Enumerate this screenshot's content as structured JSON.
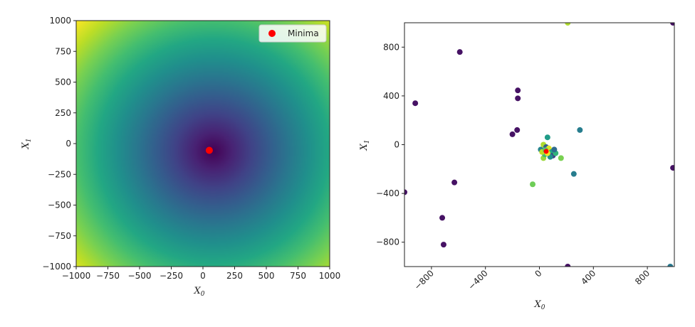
{
  "chart_data": [
    {
      "type": "heatmap",
      "title": "",
      "xlabel": "X",
      "xlabel_sub": "0",
      "ylabel": "X",
      "ylabel_sub": "1",
      "xlim": [
        -1000,
        1000
      ],
      "ylim": [
        -1000,
        1000
      ],
      "xticks": [
        -1000,
        -750,
        -500,
        -250,
        0,
        250,
        500,
        750,
        1000
      ],
      "yticks": [
        -1000,
        -750,
        -500,
        -250,
        0,
        250,
        500,
        750,
        1000
      ],
      "colormap": "viridis",
      "function_minimum_center": [
        80,
        -60
      ],
      "minima_point": {
        "x": 50,
        "y": -55,
        "color": "#ff0000"
      },
      "legend": {
        "placement": "top-right",
        "label": "Minima"
      }
    },
    {
      "type": "scatter",
      "title": "",
      "xlabel": "X",
      "xlabel_sub": "0",
      "ylabel": "X",
      "ylabel_sub": "1",
      "xlim": [
        -1000,
        1000
      ],
      "ylim": [
        -1000,
        1000
      ],
      "xticks": [
        -800,
        -400,
        0,
        400,
        800
      ],
      "yticks": [
        -800,
        -400,
        0,
        400,
        800
      ],
      "xtick_rotation": -45,
      "colormap": "viridis",
      "points": [
        {
          "x": -590,
          "y": 760,
          "c": 0.05
        },
        {
          "x": -920,
          "y": 340,
          "c": 0.05
        },
        {
          "x": -160,
          "y": 445,
          "c": 0.05
        },
        {
          "x": -160,
          "y": 380,
          "c": 0.05
        },
        {
          "x": -200,
          "y": 85,
          "c": 0.05
        },
        {
          "x": -165,
          "y": 120,
          "c": 0.05
        },
        {
          "x": -1000,
          "y": -390,
          "c": 0.05
        },
        {
          "x": -630,
          "y": -310,
          "c": 0.05
        },
        {
          "x": -720,
          "y": -600,
          "c": 0.05
        },
        {
          "x": -710,
          "y": -820,
          "c": 0.05
        },
        {
          "x": 210,
          "y": -1000,
          "c": 0.05
        },
        {
          "x": 970,
          "y": -1000,
          "c": 0.4
        },
        {
          "x": 990,
          "y": -190,
          "c": 0.05
        },
        {
          "x": 990,
          "y": 1000,
          "c": 0.05
        },
        {
          "x": 210,
          "y": 1000,
          "c": 0.88
        },
        {
          "x": 300,
          "y": 120,
          "c": 0.42
        },
        {
          "x": 255,
          "y": -240,
          "c": 0.42
        },
        {
          "x": -50,
          "y": -325,
          "c": 0.78
        },
        {
          "x": 60,
          "y": 60,
          "c": 0.55
        },
        {
          "x": 160,
          "y": -110,
          "c": 0.8
        },
        {
          "x": 10,
          "y": -40,
          "c": 0.45
        },
        {
          "x": 30,
          "y": 0,
          "c": 0.88
        },
        {
          "x": 50,
          "y": -20,
          "c": 0.3
        },
        {
          "x": 70,
          "y": -30,
          "c": 0.95
        },
        {
          "x": 90,
          "y": -60,
          "c": 0.6
        },
        {
          "x": 100,
          "y": -90,
          "c": 0.2
        },
        {
          "x": 30,
          "y": -110,
          "c": 0.85
        },
        {
          "x": 40,
          "y": -80,
          "c": 0.7
        },
        {
          "x": 80,
          "y": -100,
          "c": 0.5
        },
        {
          "x": 120,
          "y": -70,
          "c": 0.65
        },
        {
          "x": 20,
          "y": -60,
          "c": 0.9
        },
        {
          "x": 60,
          "y": -70,
          "c": 0.98
        },
        {
          "x": 110,
          "y": -40,
          "c": 0.35
        },
        {
          "x": 45,
          "y": -45,
          "c": 0.75
        }
      ],
      "minima_point": {
        "x": 50,
        "y": -55,
        "color": "#ff0000"
      }
    }
  ]
}
